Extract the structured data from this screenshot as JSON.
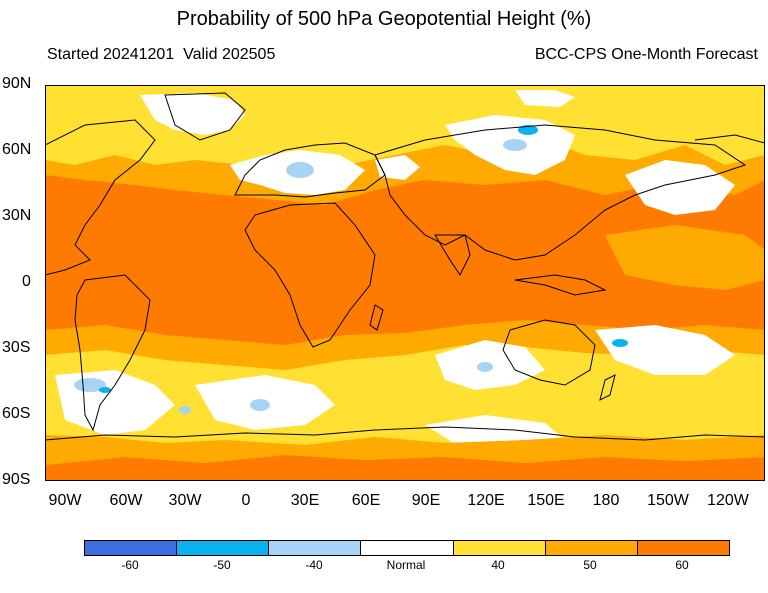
{
  "title": "Probability of 500 hPa Geopotential Height (%)",
  "subtitle_left": "Started 20241201  Valid 202505",
  "subtitle_right": "BCC-CPS One-Month Forecast",
  "lat_labels": [
    "90N",
    "60N",
    "30N",
    "0",
    "30S",
    "60S",
    "90S"
  ],
  "lon_labels": [
    "90W",
    "60W",
    "30W",
    "0",
    "30E",
    "60E",
    "90E",
    "120E",
    "150E",
    "180",
    "150W",
    "120W"
  ],
  "legend": {
    "colors": [
      "#3d6ee0",
      "#0bb2ef",
      "#a7d3f5",
      "#ffffff",
      "#ffe033",
      "#ffaa00",
      "#ff7a00"
    ],
    "labels": [
      "-60",
      "-50",
      "-40",
      "Normal",
      "40",
      "50",
      "60"
    ]
  },
  "colors": {
    "dominant": "#ff7a00",
    "above_50": "#ffaa00",
    "above_40": "#ffe033",
    "normal": "#ffffff",
    "below_40": "#a7d3f5",
    "below_50": "#0bb2ef"
  }
}
